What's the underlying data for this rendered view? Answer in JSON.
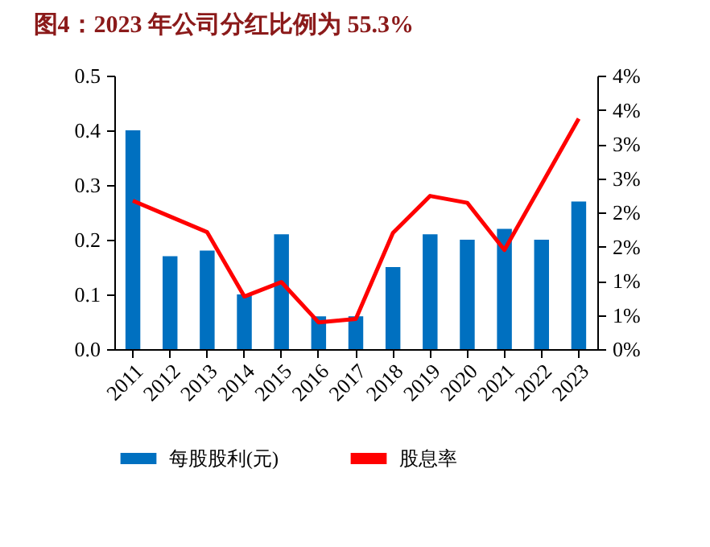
{
  "chart_data": {
    "type": "bar",
    "title": "图4：2023 年公司分红比例为 55.3%",
    "categories": [
      "2011",
      "2012",
      "2013",
      "2014",
      "2015",
      "2016",
      "2017",
      "2018",
      "2019",
      "2020",
      "2021",
      "2022",
      "2023"
    ],
    "series": [
      {
        "name": "每股股利(元)",
        "color": "#0070c0",
        "values": [
          0.4,
          0.17,
          0.18,
          0.1,
          0.21,
          0.06,
          0.06,
          0.15,
          0.21,
          0.2,
          0.22,
          0.2,
          0.27
        ]
      },
      {
        "name": "股息率",
        "type": "line",
        "axis": "y2",
        "color": "#ff0000",
        "values": [
          2.17,
          1.94,
          1.71,
          0.77,
          0.98,
          0.39,
          0.44,
          1.7,
          2.24,
          2.14,
          1.45,
          2.41,
          3.37
        ]
      }
    ],
    "ylim": [
      0,
      0.5
    ],
    "yticks": [
      {
        "value": 0,
        "label": "0.0"
      },
      0.1,
      0.2,
      0.3,
      0.4,
      0.5
    ],
    "y2lim": [
      0,
      4
    ],
    "y2ticks": [
      {
        "value": 0,
        "label": "0%"
      },
      {
        "value": 0.5,
        "label": "1%"
      },
      {
        "value": 1,
        "label": "1%"
      },
      {
        "value": 1.5,
        "label": "2%"
      },
      {
        "value": 2,
        "label": "2%"
      },
      {
        "value": 2.5,
        "label": "3%"
      },
      {
        "value": 3,
        "label": "3%"
      },
      {
        "value": 3.5,
        "label": "4%"
      },
      {
        "value": 4,
        "label": "4%"
      }
    ],
    "legend": "bottom",
    "grid": false
  }
}
